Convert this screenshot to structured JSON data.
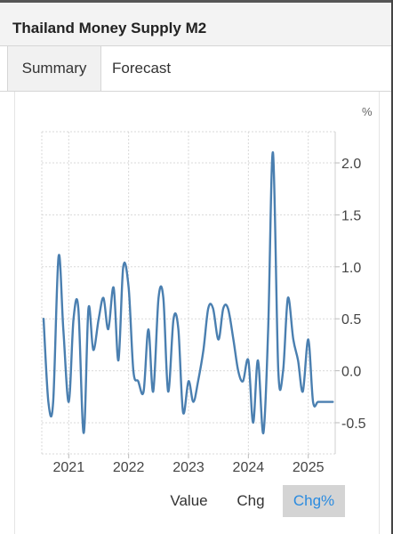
{
  "header": {
    "title": "Thailand Money Supply M2"
  },
  "tabs": [
    {
      "label": "Summary"
    },
    {
      "label": "Forecast"
    }
  ],
  "chart": {
    "unit_label": "%",
    "series_color": "#4a7fb0",
    "grid_color": "#d9d9d9"
  },
  "chart_data": {
    "type": "line",
    "title": "",
    "xlabel": "",
    "ylabel": "%",
    "ylim": [
      -0.8,
      2.3
    ],
    "xlim": [
      2020.55,
      2025.45
    ],
    "y_ticks": [
      2.0,
      1.5,
      1.0,
      0.5,
      0.0,
      -0.5
    ],
    "y_tick_labels": [
      "2.0",
      "1.5",
      "1.0",
      "0.5",
      "0.0",
      "-0.5"
    ],
    "x_ticks": [
      2021,
      2022,
      2023,
      2024,
      2025
    ],
    "x_tick_labels": [
      "2021",
      "2022",
      "2023",
      "2024",
      "2025"
    ],
    "grid": true,
    "series": [
      {
        "x": [
          2020.58,
          2020.66,
          2020.74,
          2020.83,
          2020.91,
          2021.0,
          2021.08,
          2021.16,
          2021.25,
          2021.33,
          2021.41,
          2021.5,
          2021.58,
          2021.66,
          2021.75,
          2021.83,
          2021.91,
          2022.0,
          2022.08,
          2022.16,
          2022.25,
          2022.33,
          2022.41,
          2022.5,
          2022.58,
          2022.66,
          2022.75,
          2022.83,
          2022.91,
          2023.0,
          2023.08,
          2023.16,
          2023.25,
          2023.33,
          2023.41,
          2023.5,
          2023.58,
          2023.66,
          2023.75,
          2023.83,
          2023.91,
          2024.0,
          2024.08,
          2024.16,
          2024.25,
          2024.33,
          2024.41,
          2024.5,
          2024.58,
          2024.66,
          2024.75,
          2024.83,
          2024.91,
          2025.0,
          2025.08,
          2025.16,
          2025.25,
          2025.33,
          2025.41
        ],
        "y": [
          0.5,
          -0.3,
          -0.3,
          1.1,
          0.4,
          -0.3,
          0.5,
          0.6,
          -0.6,
          0.6,
          0.2,
          0.5,
          0.7,
          0.4,
          0.8,
          0.1,
          1.0,
          0.8,
          0.0,
          -0.1,
          -0.2,
          0.4,
          -0.2,
          0.7,
          0.7,
          -0.2,
          0.5,
          0.4,
          -0.4,
          -0.1,
          -0.3,
          -0.1,
          0.2,
          0.6,
          0.6,
          0.3,
          0.6,
          0.6,
          0.3,
          0.0,
          -0.1,
          0.1,
          -0.5,
          0.1,
          -0.6,
          0.4,
          2.1,
          0.0,
          0.0,
          0.7,
          0.3,
          0.1,
          -0.2,
          0.3,
          -0.3,
          -0.3,
          -0.3,
          -0.3,
          -0.3
        ]
      }
    ]
  },
  "buttons": {
    "value_label": "Value",
    "chg_label": "Chg",
    "chgpct_label": "Chg%"
  }
}
